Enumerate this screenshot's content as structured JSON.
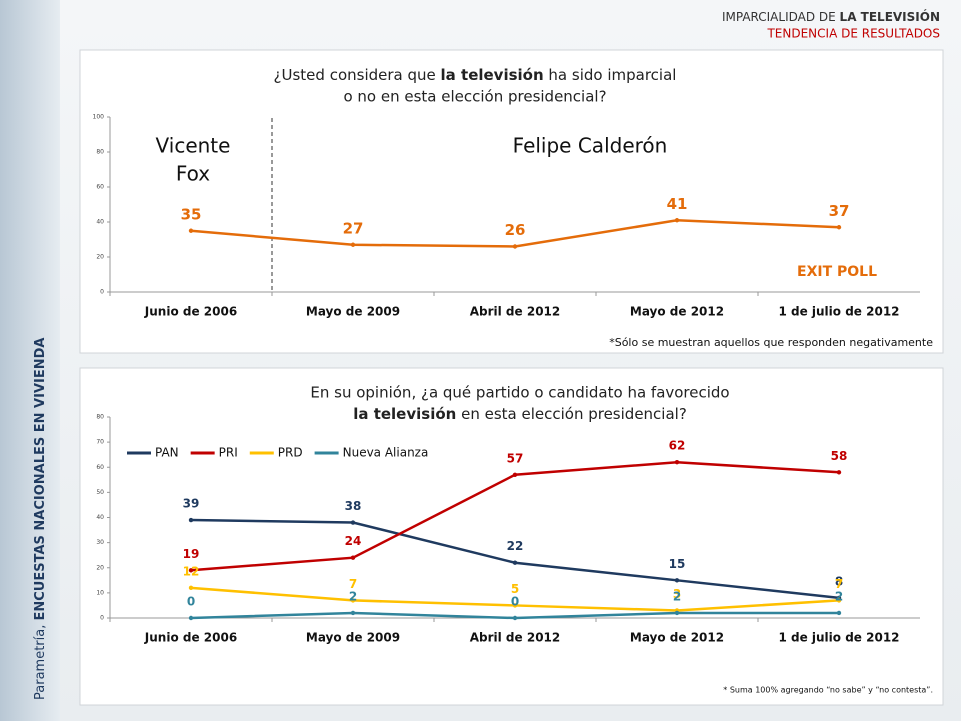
{
  "header": {
    "title_plain": "IMPARCIALIDAD DE ",
    "title_bold": "LA TELEVISIÓN",
    "subtitle": "TENDENCIA DE RESULTADOS"
  },
  "side": {
    "plain": "Parametría, ",
    "bold": "ENCUESTAS NACIONALES EN VIVIENDA"
  },
  "chart_data": [
    {
      "type": "line",
      "title": [
        [
          "¿Usted considera que ",
          "la televisión",
          " ha sido imparcial"
        ],
        [
          "o no en esta elección presidencial?"
        ]
      ],
      "categories": [
        "Junio de 2006",
        "Mayo de 2009",
        "Abril de 2012",
        "Mayo de 2012",
        "1 de julio de 2012"
      ],
      "values": [
        35,
        27,
        26,
        41,
        37
      ],
      "color": "#e46c0a",
      "ylim": [
        0,
        100
      ],
      "yticks": [
        0,
        20,
        40,
        60,
        80,
        100
      ],
      "annotations": {
        "left": [
          "Vicente",
          "Fox"
        ],
        "right": "Felipe Calderón",
        "exit": "EXIT POLL"
      },
      "note": "*Sólo se muestran aquellos que responden negativamente"
    },
    {
      "type": "line",
      "title": [
        [
          "En su opinión, ¿a qué partido o candidato ha favorecido"
        ],
        [
          "la televisión",
          " en esta elección presidencial?"
        ]
      ],
      "categories": [
        "Junio de 2006",
        "Mayo de 2009",
        "Abril de 2012",
        "Mayo de 2012",
        "1 de julio de 2012"
      ],
      "series": [
        {
          "name": "PAN",
          "color": "#1f3a5f",
          "values": [
            39,
            38,
            22,
            15,
            8
          ]
        },
        {
          "name": "PRI",
          "color": "#c00000",
          "values": [
            19,
            24,
            57,
            62,
            58
          ]
        },
        {
          "name": "PRD",
          "color": "#ffc000",
          "values": [
            12,
            7,
            5,
            3,
            7
          ]
        },
        {
          "name": "Nueva Alianza",
          "color": "#31849b",
          "values": [
            0,
            2,
            0,
            2,
            2
          ]
        }
      ],
      "ylim": [
        0,
        80
      ],
      "yticks": [
        0,
        10,
        20,
        30,
        40,
        50,
        60,
        70,
        80
      ],
      "legend": "top-left",
      "note": "* Suma 100%  agregando “no sabe” y “no contesta”."
    }
  ]
}
